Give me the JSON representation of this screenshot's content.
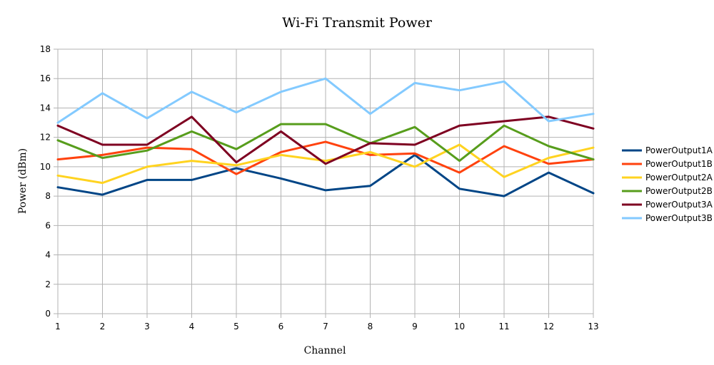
{
  "chart_data": {
    "type": "line",
    "title": "Wi-Fi Transmit Power",
    "xlabel": "Channel",
    "ylabel": "Power (dBm)",
    "x": [
      1,
      2,
      3,
      4,
      5,
      6,
      7,
      8,
      9,
      10,
      11,
      12,
      13
    ],
    "ylim": [
      0,
      18
    ],
    "yticks": [
      0,
      2,
      4,
      6,
      8,
      10,
      12,
      14,
      16,
      18
    ],
    "grid": true,
    "legend_position": "right",
    "series": [
      {
        "name": "PowerOutput1A",
        "color": "#004586",
        "values": [
          8.6,
          8.1,
          9.1,
          9.1,
          9.9,
          9.2,
          8.4,
          8.7,
          10.8,
          8.5,
          8.0,
          9.6,
          8.2
        ]
      },
      {
        "name": "PowerOutput1B",
        "color": "#ff420e",
        "values": [
          10.5,
          10.8,
          11.3,
          11.2,
          9.5,
          11.0,
          11.7,
          10.8,
          10.9,
          9.6,
          11.4,
          10.2,
          10.5
        ]
      },
      {
        "name": "PowerOutput2A",
        "color": "#ffd320",
        "values": [
          9.4,
          8.9,
          10.0,
          10.4,
          10.1,
          10.8,
          10.4,
          11.0,
          10.0,
          11.5,
          9.3,
          10.6,
          11.3
        ]
      },
      {
        "name": "PowerOutput2B",
        "color": "#579d1c",
        "values": [
          11.8,
          10.6,
          11.1,
          12.4,
          11.2,
          12.9,
          12.9,
          11.6,
          12.7,
          10.4,
          12.8,
          11.4,
          10.5
        ]
      },
      {
        "name": "PowerOutput3A",
        "color": "#7e0021",
        "values": [
          12.8,
          11.5,
          11.5,
          13.4,
          10.3,
          12.4,
          10.2,
          11.6,
          11.5,
          12.8,
          13.1,
          13.4,
          12.6
        ]
      },
      {
        "name": "PowerOutput3B",
        "color": "#83caff",
        "values": [
          13.0,
          15.0,
          13.3,
          15.1,
          13.7,
          15.1,
          16.0,
          13.6,
          15.7,
          15.2,
          15.8,
          13.1,
          13.6
        ]
      }
    ]
  }
}
